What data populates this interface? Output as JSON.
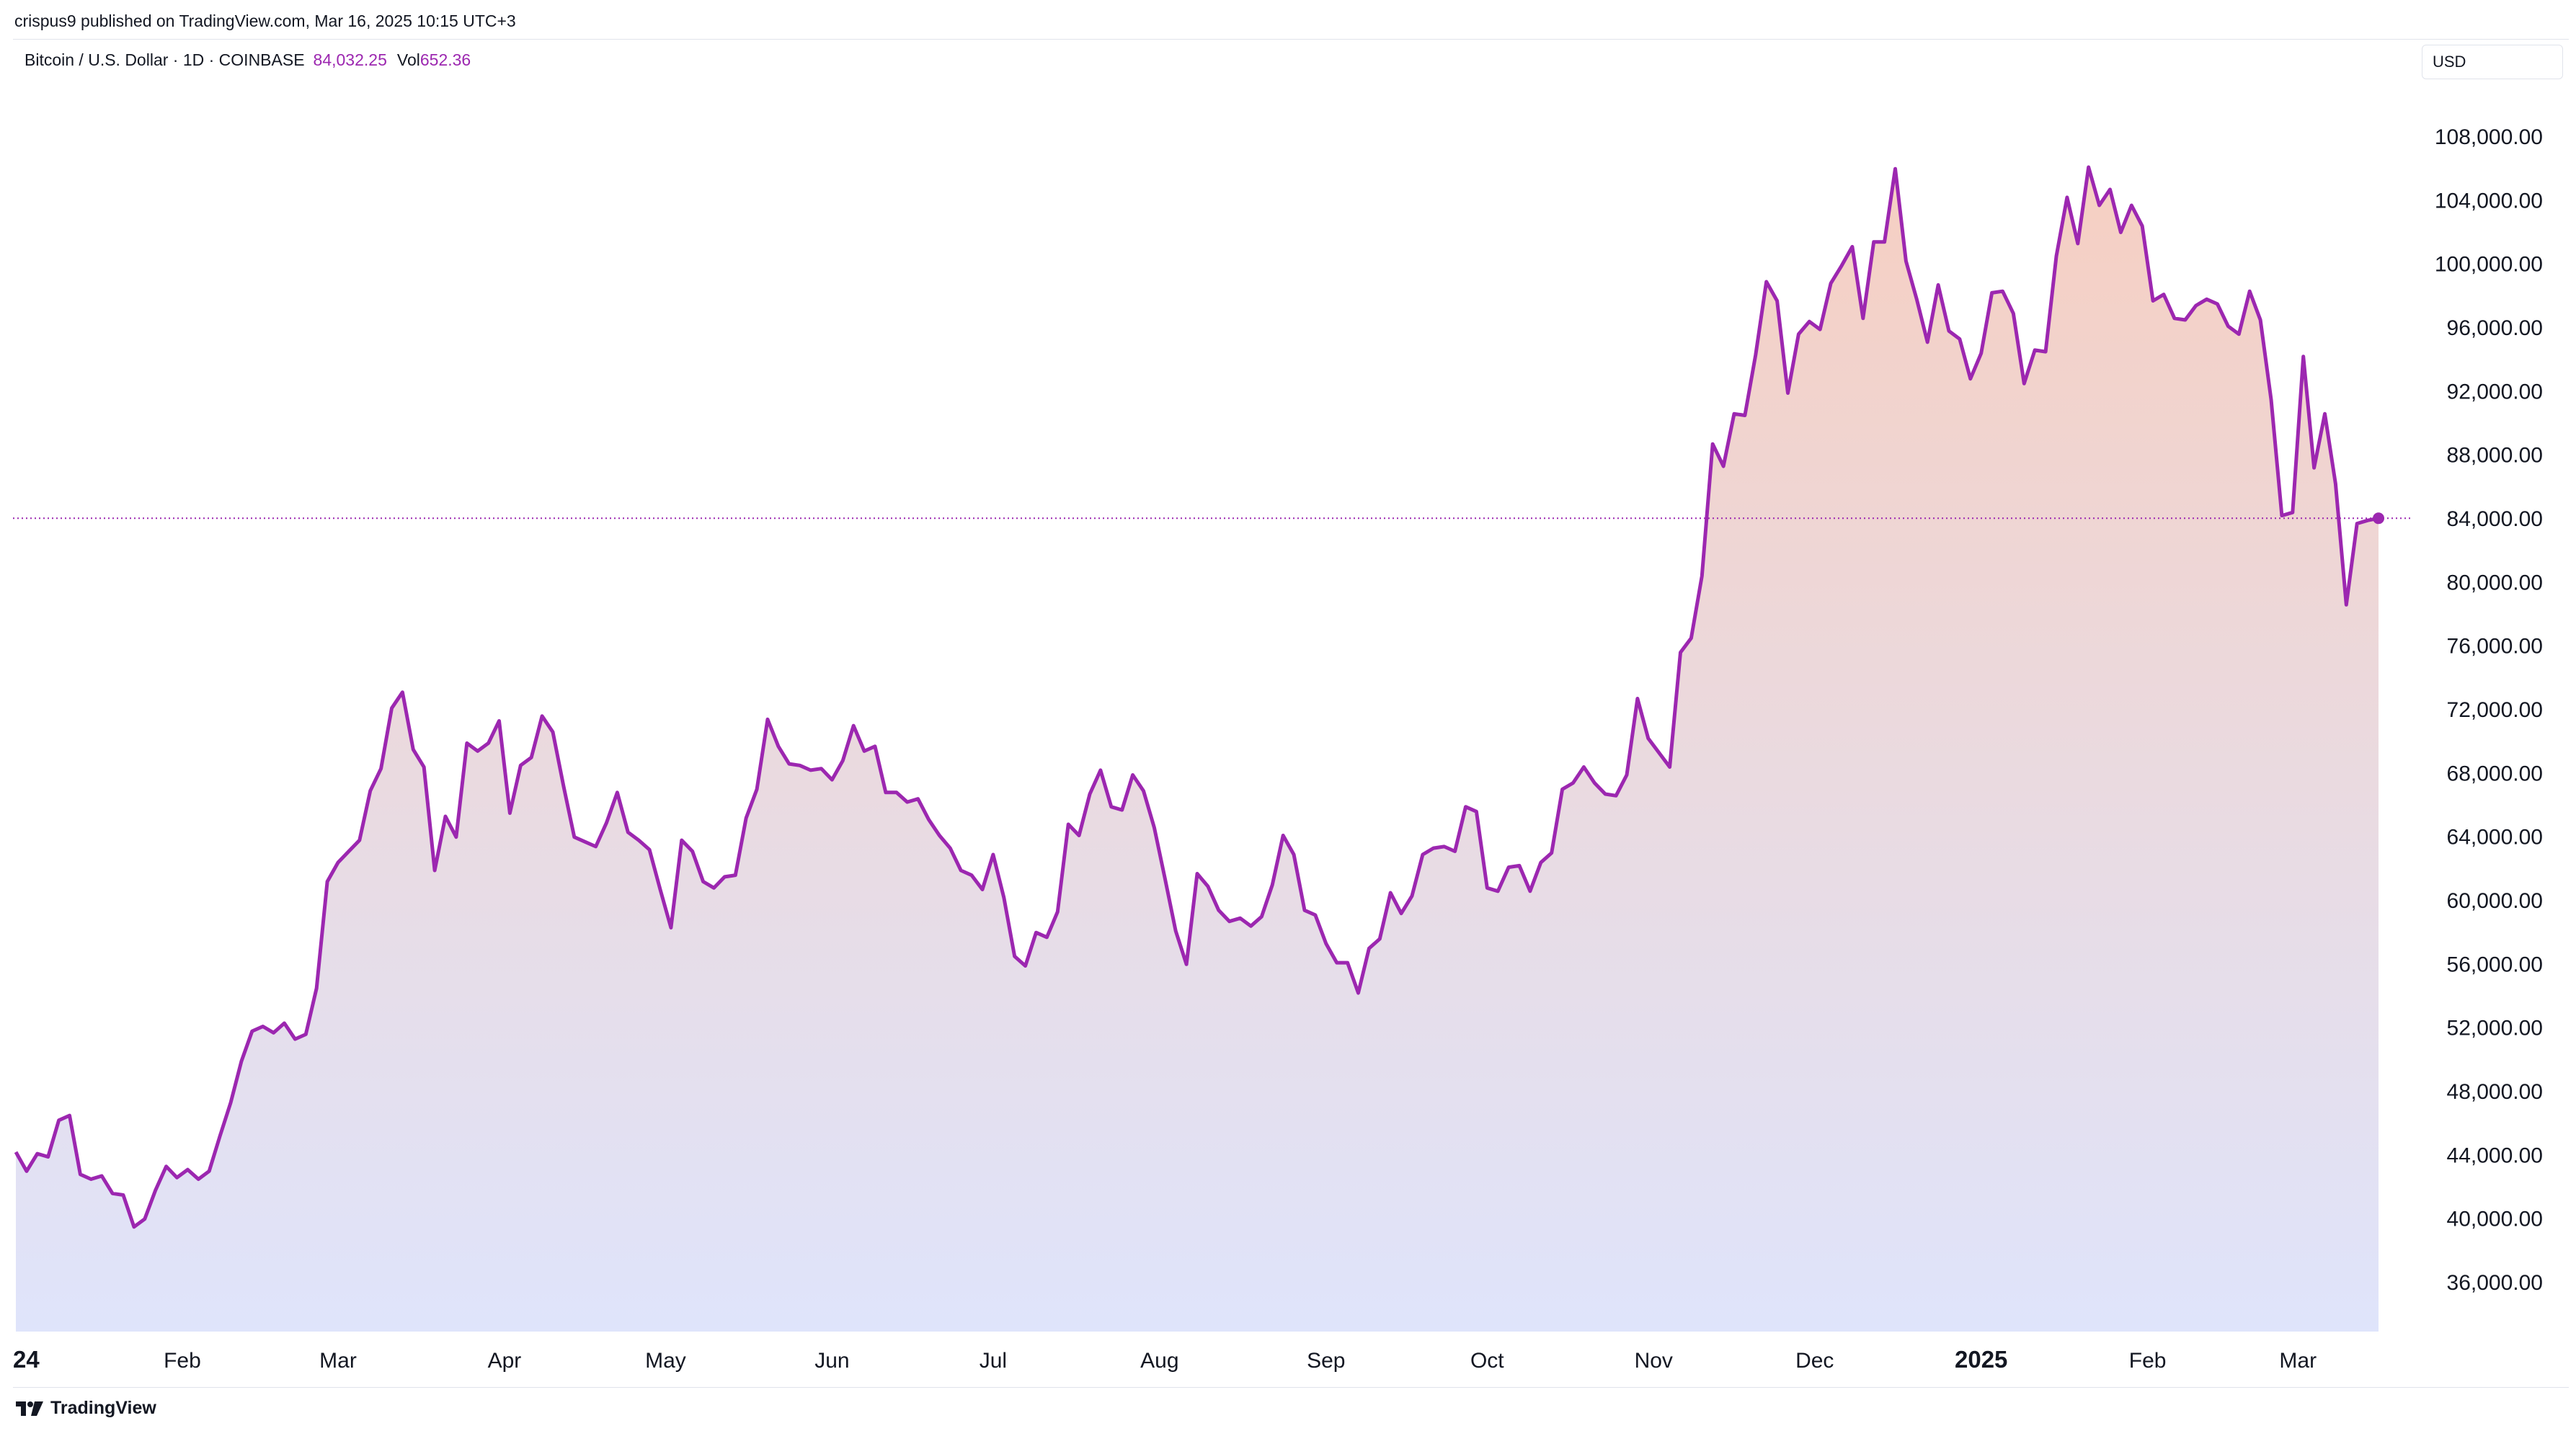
{
  "header": {
    "published": "crispus9 published on TradingView.com, Mar 16, 2025 10:15 UTC+3"
  },
  "legend": {
    "symbol": "Bitcoin / U.S. Dollar · 1D · COINBASE",
    "price": "84,032.25",
    "vol_label": "Vol",
    "vol_value": "652.36"
  },
  "currency_button": "USD",
  "footer": {
    "logo_icon": "tradingview-logo-icon",
    "brand": "TradingView"
  },
  "colors": {
    "line": "#9c27b0",
    "fill_top": "#f6cfc2",
    "fill_bottom": "#dfe4fb",
    "grid_text": "#131722"
  },
  "chart_data": {
    "type": "area",
    "title": "Bitcoin / U.S. Dollar · 1D · COINBASE",
    "last_value": 84032.25,
    "ylim": [
      32000,
      111000
    ],
    "y_ticks": [
      "108,000.00",
      "104,000.00",
      "100,000.00",
      "96,000.00",
      "92,000.00",
      "88,000.00",
      "84,000.00",
      "80,000.00",
      "76,000.00",
      "72,000.00",
      "68,000.00",
      "64,000.00",
      "60,000.00",
      "56,000.00",
      "52,000.00",
      "48,000.00",
      "44,000.00",
      "40,000.00",
      "36,000.00"
    ],
    "x_ticks": [
      {
        "label": "24",
        "date": "2024-01-01",
        "bold": true
      },
      {
        "label": "Feb",
        "date": "2024-02-01",
        "bold": false
      },
      {
        "label": "Mar",
        "date": "2024-03-01",
        "bold": false
      },
      {
        "label": "Apr",
        "date": "2024-04-01",
        "bold": false
      },
      {
        "label": "May",
        "date": "2024-05-01",
        "bold": false
      },
      {
        "label": "Jun",
        "date": "2024-06-01",
        "bold": false
      },
      {
        "label": "Jul",
        "date": "2024-07-01",
        "bold": false
      },
      {
        "label": "Aug",
        "date": "2024-08-01",
        "bold": false
      },
      {
        "label": "Sep",
        "date": "2024-09-01",
        "bold": false
      },
      {
        "label": "Oct",
        "date": "2024-10-01",
        "bold": false
      },
      {
        "label": "Nov",
        "date": "2024-11-01",
        "bold": false
      },
      {
        "label": "Dec",
        "date": "2024-12-01",
        "bold": false
      },
      {
        "label": "2025",
        "date": "2025-01-01",
        "bold": true
      },
      {
        "label": "Feb",
        "date": "2025-02-01",
        "bold": false
      },
      {
        "label": "Mar",
        "date": "2025-03-01",
        "bold": false
      }
    ],
    "series": [
      {
        "values": [
          [
            "2024-01-01",
            44200
          ],
          [
            "2024-01-03",
            43000
          ],
          [
            "2024-01-05",
            44100
          ],
          [
            "2024-01-07",
            43900
          ],
          [
            "2024-01-09",
            46200
          ],
          [
            "2024-01-11",
            46500
          ],
          [
            "2024-01-13",
            42800
          ],
          [
            "2024-01-15",
            42500
          ],
          [
            "2024-01-17",
            42700
          ],
          [
            "2024-01-19",
            41600
          ],
          [
            "2024-01-21",
            41500
          ],
          [
            "2024-01-23",
            39500
          ],
          [
            "2024-01-25",
            40000
          ],
          [
            "2024-01-27",
            41800
          ],
          [
            "2024-01-29",
            43300
          ],
          [
            "2024-01-31",
            42600
          ],
          [
            "2024-02-02",
            43100
          ],
          [
            "2024-02-04",
            42500
          ],
          [
            "2024-02-06",
            43000
          ],
          [
            "2024-02-08",
            45200
          ],
          [
            "2024-02-10",
            47300
          ],
          [
            "2024-02-12",
            49900
          ],
          [
            "2024-02-14",
            51800
          ],
          [
            "2024-02-16",
            52100
          ],
          [
            "2024-02-18",
            51700
          ],
          [
            "2024-02-20",
            52300
          ],
          [
            "2024-02-22",
            51300
          ],
          [
            "2024-02-24",
            51600
          ],
          [
            "2024-02-26",
            54500
          ],
          [
            "2024-02-28",
            61200
          ],
          [
            "2024-03-01",
            62400
          ],
          [
            "2024-03-03",
            63100
          ],
          [
            "2024-03-05",
            63800
          ],
          [
            "2024-03-07",
            66900
          ],
          [
            "2024-03-09",
            68300
          ],
          [
            "2024-03-11",
            72100
          ],
          [
            "2024-03-13",
            73100
          ],
          [
            "2024-03-15",
            69500
          ],
          [
            "2024-03-17",
            68400
          ],
          [
            "2024-03-19",
            61900
          ],
          [
            "2024-03-21",
            65300
          ],
          [
            "2024-03-23",
            64000
          ],
          [
            "2024-03-25",
            69900
          ],
          [
            "2024-03-27",
            69400
          ],
          [
            "2024-03-29",
            69900
          ],
          [
            "2024-03-31",
            71300
          ],
          [
            "2024-04-02",
            65500
          ],
          [
            "2024-04-04",
            68500
          ],
          [
            "2024-04-06",
            69000
          ],
          [
            "2024-04-08",
            71600
          ],
          [
            "2024-04-10",
            70600
          ],
          [
            "2024-04-12",
            67200
          ],
          [
            "2024-04-14",
            64000
          ],
          [
            "2024-04-16",
            63700
          ],
          [
            "2024-04-18",
            63400
          ],
          [
            "2024-04-20",
            64900
          ],
          [
            "2024-04-22",
            66800
          ],
          [
            "2024-04-24",
            64300
          ],
          [
            "2024-04-26",
            63800
          ],
          [
            "2024-04-28",
            63200
          ],
          [
            "2024-04-30",
            60700
          ],
          [
            "2024-05-02",
            58300
          ],
          [
            "2024-05-04",
            63800
          ],
          [
            "2024-05-06",
            63100
          ],
          [
            "2024-05-08",
            61200
          ],
          [
            "2024-05-10",
            60800
          ],
          [
            "2024-05-12",
            61500
          ],
          [
            "2024-05-14",
            61600
          ],
          [
            "2024-05-16",
            65200
          ],
          [
            "2024-05-18",
            67000
          ],
          [
            "2024-05-20",
            71400
          ],
          [
            "2024-05-22",
            69700
          ],
          [
            "2024-05-24",
            68600
          ],
          [
            "2024-05-26",
            68500
          ],
          [
            "2024-05-28",
            68200
          ],
          [
            "2024-05-30",
            68300
          ],
          [
            "2024-06-01",
            67600
          ],
          [
            "2024-06-03",
            68800
          ],
          [
            "2024-06-05",
            71000
          ],
          [
            "2024-06-07",
            69400
          ],
          [
            "2024-06-09",
            69700
          ],
          [
            "2024-06-11",
            66800
          ],
          [
            "2024-06-13",
            66800
          ],
          [
            "2024-06-15",
            66200
          ],
          [
            "2024-06-17",
            66400
          ],
          [
            "2024-06-19",
            65100
          ],
          [
            "2024-06-21",
            64100
          ],
          [
            "2024-06-23",
            63300
          ],
          [
            "2024-06-25",
            61900
          ],
          [
            "2024-06-27",
            61600
          ],
          [
            "2024-06-29",
            60700
          ],
          [
            "2024-07-01",
            62900
          ],
          [
            "2024-07-03",
            60200
          ],
          [
            "2024-07-05",
            56500
          ],
          [
            "2024-07-07",
            55900
          ],
          [
            "2024-07-09",
            58000
          ],
          [
            "2024-07-11",
            57700
          ],
          [
            "2024-07-13",
            59300
          ],
          [
            "2024-07-15",
            64800
          ],
          [
            "2024-07-17",
            64100
          ],
          [
            "2024-07-19",
            66700
          ],
          [
            "2024-07-21",
            68200
          ],
          [
            "2024-07-23",
            65900
          ],
          [
            "2024-07-25",
            65700
          ],
          [
            "2024-07-27",
            67900
          ],
          [
            "2024-07-29",
            66900
          ],
          [
            "2024-07-31",
            64600
          ],
          [
            "2024-08-02",
            61400
          ],
          [
            "2024-08-04",
            58100
          ],
          [
            "2024-08-06",
            56000
          ],
          [
            "2024-08-08",
            61700
          ],
          [
            "2024-08-10",
            60900
          ],
          [
            "2024-08-12",
            59400
          ],
          [
            "2024-08-14",
            58700
          ],
          [
            "2024-08-16",
            58900
          ],
          [
            "2024-08-18",
            58400
          ],
          [
            "2024-08-20",
            59000
          ],
          [
            "2024-08-22",
            61000
          ],
          [
            "2024-08-24",
            64100
          ],
          [
            "2024-08-26",
            62900
          ],
          [
            "2024-08-28",
            59400
          ],
          [
            "2024-08-30",
            59100
          ],
          [
            "2024-09-01",
            57300
          ],
          [
            "2024-09-03",
            56100
          ],
          [
            "2024-09-05",
            56100
          ],
          [
            "2024-09-07",
            54200
          ],
          [
            "2024-09-09",
            57000
          ],
          [
            "2024-09-11",
            57600
          ],
          [
            "2024-09-13",
            60500
          ],
          [
            "2024-09-15",
            59200
          ],
          [
            "2024-09-17",
            60300
          ],
          [
            "2024-09-19",
            62900
          ],
          [
            "2024-09-21",
            63300
          ],
          [
            "2024-09-23",
            63400
          ],
          [
            "2024-09-25",
            63100
          ],
          [
            "2024-09-27",
            65900
          ],
          [
            "2024-09-29",
            65600
          ],
          [
            "2024-10-01",
            60800
          ],
          [
            "2024-10-03",
            60600
          ],
          [
            "2024-10-05",
            62100
          ],
          [
            "2024-10-07",
            62200
          ],
          [
            "2024-10-09",
            60600
          ],
          [
            "2024-10-11",
            62400
          ],
          [
            "2024-10-13",
            63000
          ],
          [
            "2024-10-15",
            67000
          ],
          [
            "2024-10-17",
            67400
          ],
          [
            "2024-10-19",
            68400
          ],
          [
            "2024-10-21",
            67400
          ],
          [
            "2024-10-23",
            66700
          ],
          [
            "2024-10-25",
            66600
          ],
          [
            "2024-10-27",
            67900
          ],
          [
            "2024-10-29",
            72700
          ],
          [
            "2024-10-31",
            70200
          ],
          [
            "2024-11-02",
            69300
          ],
          [
            "2024-11-04",
            68400
          ],
          [
            "2024-11-06",
            75600
          ],
          [
            "2024-11-08",
            76500
          ],
          [
            "2024-11-10",
            80400
          ],
          [
            "2024-11-12",
            88700
          ],
          [
            "2024-11-14",
            87300
          ],
          [
            "2024-11-16",
            90600
          ],
          [
            "2024-11-18",
            90500
          ],
          [
            "2024-11-20",
            94300
          ],
          [
            "2024-11-22",
            98900
          ],
          [
            "2024-11-24",
            97700
          ],
          [
            "2024-11-26",
            91900
          ],
          [
            "2024-11-28",
            95600
          ],
          [
            "2024-11-30",
            96400
          ],
          [
            "2024-12-02",
            95900
          ],
          [
            "2024-12-04",
            98800
          ],
          [
            "2024-12-06",
            99900
          ],
          [
            "2024-12-08",
            101100
          ],
          [
            "2024-12-10",
            96600
          ],
          [
            "2024-12-12",
            101400
          ],
          [
            "2024-12-14",
            101400
          ],
          [
            "2024-12-16",
            106000
          ],
          [
            "2024-12-18",
            100200
          ],
          [
            "2024-12-20",
            97800
          ],
          [
            "2024-12-22",
            95100
          ],
          [
            "2024-12-24",
            98700
          ],
          [
            "2024-12-26",
            95800
          ],
          [
            "2024-12-28",
            95300
          ],
          [
            "2024-12-30",
            92800
          ],
          [
            "2025-01-01",
            94400
          ],
          [
            "2025-01-03",
            98200
          ],
          [
            "2025-01-05",
            98300
          ],
          [
            "2025-01-07",
            96900
          ],
          [
            "2025-01-09",
            92500
          ],
          [
            "2025-01-11",
            94600
          ],
          [
            "2025-01-13",
            94500
          ],
          [
            "2025-01-15",
            100500
          ],
          [
            "2025-01-17",
            104200
          ],
          [
            "2025-01-19",
            101300
          ],
          [
            "2025-01-21",
            106100
          ],
          [
            "2025-01-23",
            103700
          ],
          [
            "2025-01-25",
            104700
          ],
          [
            "2025-01-27",
            102000
          ],
          [
            "2025-01-29",
            103700
          ],
          [
            "2025-01-31",
            102400
          ],
          [
            "2025-02-02",
            97700
          ],
          [
            "2025-02-04",
            98100
          ],
          [
            "2025-02-06",
            96600
          ],
          [
            "2025-02-08",
            96500
          ],
          [
            "2025-02-10",
            97400
          ],
          [
            "2025-02-12",
            97800
          ],
          [
            "2025-02-14",
            97500
          ],
          [
            "2025-02-16",
            96100
          ],
          [
            "2025-02-18",
            95600
          ],
          [
            "2025-02-20",
            98300
          ],
          [
            "2025-02-22",
            96500
          ],
          [
            "2025-02-24",
            91500
          ],
          [
            "2025-02-26",
            84200
          ],
          [
            "2025-02-28",
            84400
          ],
          [
            "2025-03-02",
            94200
          ],
          [
            "2025-03-04",
            87200
          ],
          [
            "2025-03-06",
            90600
          ],
          [
            "2025-03-08",
            86200
          ],
          [
            "2025-03-10",
            78600
          ],
          [
            "2025-03-12",
            83700
          ],
          [
            "2025-03-14",
            83900
          ],
          [
            "2025-03-16",
            84032
          ]
        ]
      }
    ],
    "price_line": 84032.25,
    "grid": false,
    "legend_position": "top-left"
  }
}
